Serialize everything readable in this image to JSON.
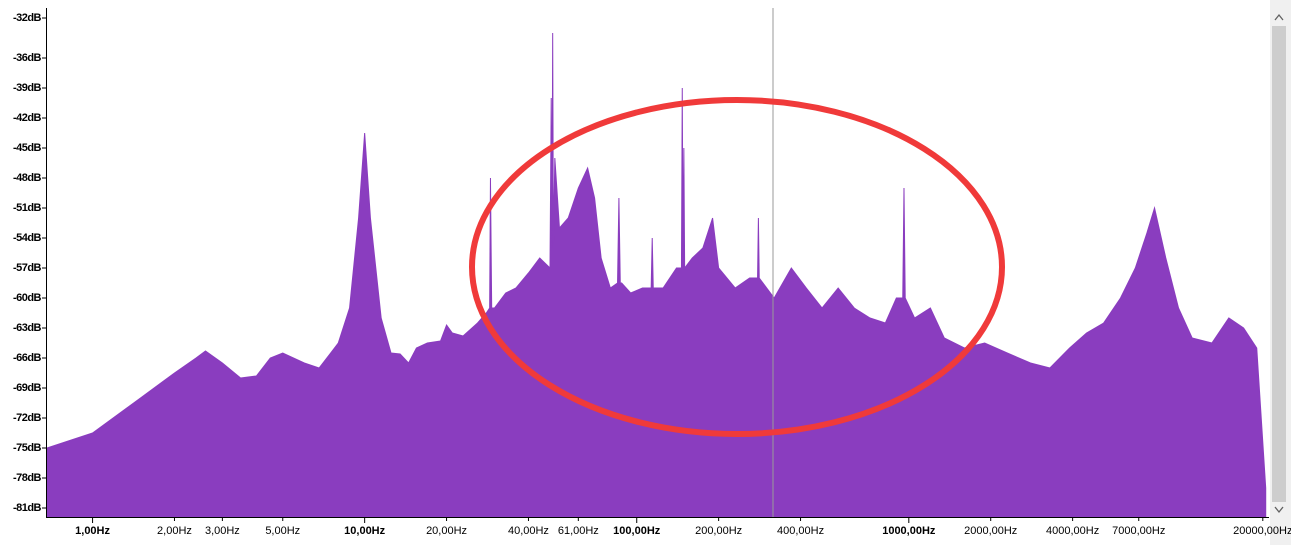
{
  "chart_data": {
    "type": "area",
    "xscale": "log",
    "color": "#8a3dbf",
    "xlim": [
      0.68,
      20900
    ],
    "ylim": [
      -81.9,
      -31
    ],
    "x": [
      0.68,
      1,
      1.5,
      2,
      2.4,
      2.6,
      3,
      3.5,
      4,
      4.5,
      5,
      6,
      6.8,
      7.5,
      8,
      8.8,
      9.5,
      10,
      10.5,
      11.5,
      12.5,
      13.5,
      14.5,
      15.5,
      17,
      19,
      20,
      21,
      23,
      26,
      28,
      28.8,
      29,
      29.3,
      30,
      33,
      36,
      40,
      44,
      48,
      48.5,
      48.8,
      49.1,
      49.4,
      50,
      52,
      56,
      61,
      66,
      70,
      74,
      80,
      85,
      86,
      87,
      88,
      95,
      105,
      113,
      114,
      115,
      125,
      140,
      146,
      147,
      148,
      149,
      150,
      160,
      175,
      190,
      200,
      230,
      260,
      278,
      280,
      282,
      320,
      370,
      420,
      480,
      550,
      630,
      720,
      820,
      900,
      950,
      960,
      970,
      1050,
      1200,
      1350,
      1600,
      1900,
      2300,
      2800,
      3300,
      3900,
      4500,
      5200,
      6000,
      6800,
      7500,
      8000,
      8800,
      9800,
      11000,
      13000,
      15000,
      17000,
      19000,
      20500
    ],
    "values": [
      -75,
      -73.5,
      -70,
      -67.5,
      -66,
      -65.3,
      -66.5,
      -68,
      -67.8,
      -66,
      -65.5,
      -66.5,
      -67,
      -65.5,
      -64.5,
      -61,
      -52,
      -43.5,
      -52,
      -62,
      -65.5,
      -65.6,
      -66.5,
      -65,
      -64.5,
      -64.3,
      -62.7,
      -63.5,
      -63.8,
      -62.5,
      -61.5,
      -61,
      -48,
      -61,
      -61,
      -59.5,
      -59,
      -57.5,
      -56,
      -57,
      -40,
      -55,
      -33.5,
      -55,
      -46,
      -53,
      -52,
      -49,
      -47,
      -50,
      -56,
      -59,
      -58.5,
      -50,
      -58.5,
      -58.5,
      -59.5,
      -59,
      -59,
      -54,
      -59,
      -59,
      -57,
      -57,
      -39,
      -57,
      -45,
      -57,
      -56,
      -55,
      -52,
      -57,
      -59,
      -58,
      -58,
      -52,
      -58,
      -60,
      -57,
      -59,
      -61,
      -59,
      -61,
      -62,
      -62.5,
      -60,
      -60,
      -49,
      -60,
      -62,
      -61,
      -64,
      -65,
      -64.5,
      -65.5,
      -66.5,
      -67,
      -65,
      -63.5,
      -62.5,
      -60,
      -57,
      -53.5,
      -51,
      -56,
      -61,
      -64,
      -64.5,
      -62,
      -63,
      -65,
      -79
    ],
    "yticks": [
      {
        "value": -32,
        "label": "-32dB"
      },
      {
        "value": -36,
        "label": "-36dB"
      },
      {
        "value": -39,
        "label": "-39dB"
      },
      {
        "value": -42,
        "label": "-42dB"
      },
      {
        "value": -45,
        "label": "-45dB"
      },
      {
        "value": -48,
        "label": "-48dB"
      },
      {
        "value": -51,
        "label": "-51dB"
      },
      {
        "value": -54,
        "label": "-54dB"
      },
      {
        "value": -57,
        "label": "-57dB"
      },
      {
        "value": -60,
        "label": "-60dB"
      },
      {
        "value": -63,
        "label": "-63dB"
      },
      {
        "value": -66,
        "label": "-66dB"
      },
      {
        "value": -69,
        "label": "-69dB"
      },
      {
        "value": -72,
        "label": "-72dB"
      },
      {
        "value": -75,
        "label": "-75dB"
      },
      {
        "value": -78,
        "label": "-78dB"
      },
      {
        "value": -81,
        "label": "-81dB"
      }
    ],
    "xticks": [
      {
        "value": 1,
        "label": "1,00Hz"
      },
      {
        "value": 2,
        "label": "2,00Hz"
      },
      {
        "value": 3,
        "label": "3,00Hz"
      },
      {
        "value": 5,
        "label": "5,00Hz"
      },
      {
        "value": 10,
        "label": "10,00Hz"
      },
      {
        "value": 20,
        "label": "20,00Hz"
      },
      {
        "value": 40,
        "label": "40,00Hz"
      },
      {
        "value": 61,
        "label": "61,00Hz"
      },
      {
        "value": 100,
        "label": "100,00Hz"
      },
      {
        "value": 200,
        "label": "200,00Hz"
      },
      {
        "value": 400,
        "label": "400,00Hz"
      },
      {
        "value": 1000,
        "label": "1000,00Hz"
      },
      {
        "value": 2000,
        "label": "2000,00Hz"
      },
      {
        "value": 4000,
        "label": "4000,00Hz"
      },
      {
        "value": 7000,
        "label": "7000,00Hz"
      },
      {
        "value": 20000,
        "label": "20000,00Hz"
      }
    ]
  }
}
